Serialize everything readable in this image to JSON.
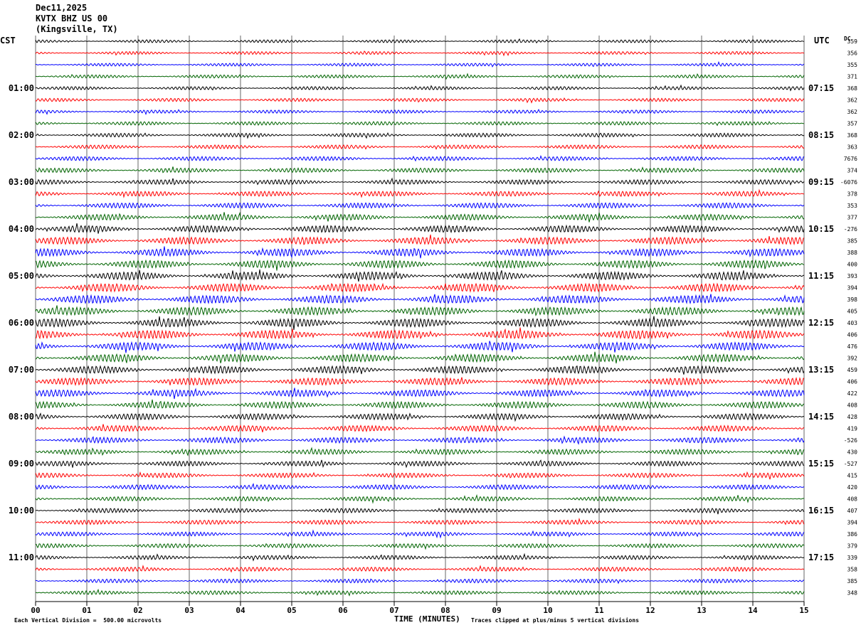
{
  "header": {
    "date": "Dec11,2025",
    "station": "KVTX BHZ US 00",
    "location": "(Kingsville, TX)"
  },
  "left_timezone": "CST",
  "right_timezone": "UTC",
  "dc_label": "DC",
  "footer": {
    "scale": "Each Vertical Division =  500.00 microvolts",
    "xlabel": "TIME (MINUTES)",
    "clip_note": "Traces clipped at plus/minus 5 vertical divisions"
  },
  "colors": {
    "trace_cycle": [
      "#000000",
      "#ff0000",
      "#0000ff",
      "#006400"
    ],
    "grid": "#000000"
  },
  "chart_data": {
    "type": "line",
    "title": "",
    "xlabel": "TIME (MINUTES)",
    "xlim": [
      0,
      15
    ],
    "x_ticks": [
      "00",
      "01",
      "02",
      "03",
      "04",
      "05",
      "06",
      "07",
      "08",
      "09",
      "10",
      "11",
      "12",
      "13",
      "14",
      "15"
    ],
    "left_time_labels": [
      "01:00",
      "02:00",
      "03:00",
      "04:00",
      "05:00",
      "06:00",
      "07:00",
      "08:00",
      "09:00",
      "10:00",
      "11:00"
    ],
    "right_time_labels": [
      "07:15",
      "08:15",
      "09:15",
      "10:15",
      "11:15",
      "12:15",
      "13:15",
      "14:15",
      "15:15",
      "16:15",
      "17:15"
    ],
    "rows_per_hour": 4,
    "minutes_per_row": 15,
    "dc_offsets": [
      "359",
      "356",
      "355",
      "371",
      "368",
      "362",
      "362",
      "357",
      "368",
      "363",
      "7676",
      "374",
      "-6076",
      "378",
      "353",
      "377",
      "-276",
      "385",
      "388",
      "400",
      "393",
      "394",
      "398",
      "405",
      "403",
      "406",
      "476",
      "392",
      "459",
      "406",
      "422",
      "408",
      "428",
      "419",
      "-526",
      "430",
      "-527",
      "415",
      "420",
      "408",
      "407",
      "394",
      "386",
      "379",
      "339",
      "358",
      "385",
      "348"
    ],
    "series_amplitude": [
      2.0,
      2.0,
      2.0,
      2.2,
      2.2,
      2.2,
      2.2,
      2.4,
      2.6,
      2.6,
      2.8,
      3.0,
      3.2,
      3.4,
      3.6,
      4.0,
      4.6,
      4.8,
      5.0,
      5.2,
      5.4,
      5.4,
      5.4,
      5.4,
      5.6,
      5.6,
      5.4,
      5.2,
      5.0,
      4.8,
      4.6,
      4.4,
      4.2,
      4.0,
      3.8,
      3.6,
      3.4,
      3.2,
      3.2,
      3.0,
      3.0,
      3.0,
      2.8,
      2.8,
      2.8,
      2.8,
      2.6,
      2.6
    ]
  }
}
